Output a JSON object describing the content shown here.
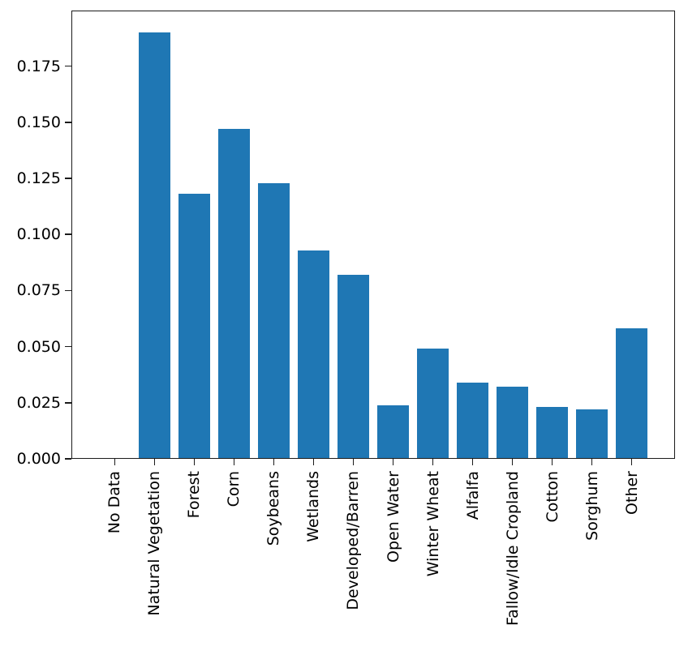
{
  "figure": {
    "background": "#ffffff"
  },
  "chart_data": {
    "type": "bar",
    "title": "",
    "xlabel": "",
    "ylabel": "",
    "categories": [
      "No Data",
      "Natural Vegetation",
      "Forest",
      "Corn",
      "Soybeans",
      "Wetlands",
      "Developed/Barren",
      "Open Water",
      "Winter Wheat",
      "Alfalfa",
      "Fallow/Idle Cropland",
      "Cotton",
      "Sorghum",
      "Other"
    ],
    "values": [
      0.0,
      0.19,
      0.118,
      0.147,
      0.123,
      0.093,
      0.082,
      0.024,
      0.049,
      0.034,
      0.032,
      0.023,
      0.022,
      0.058
    ],
    "bar_color": "#1f77b4",
    "axis_color": "#1b1b1b",
    "text_color": "#000000",
    "ylim": [
      0,
      0.1998
    ],
    "xlim": [
      -1.09,
      14.09
    ],
    "bar_width_units": 0.8,
    "yticks": [
      0.0,
      0.025,
      0.05,
      0.075,
      0.1,
      0.125,
      0.15,
      0.175
    ],
    "ytick_labels": [
      "0.000",
      "0.025",
      "0.050",
      "0.075",
      "0.100",
      "0.125",
      "0.150",
      "0.175"
    ],
    "xtick_label_rotation": 90,
    "grid": false,
    "legend": null
  }
}
